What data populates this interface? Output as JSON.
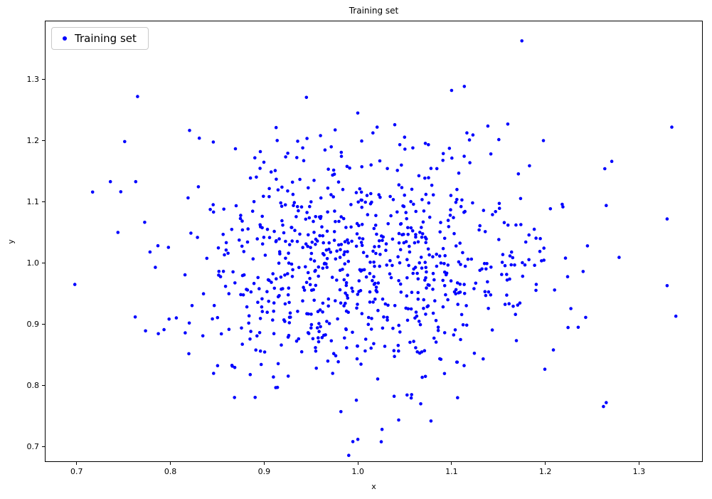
{
  "chart_data": {
    "type": "scatter",
    "title": "Training set",
    "xlabel": "x",
    "ylabel": "y",
    "xlim": [
      0.666,
      1.368
    ],
    "ylim": [
      0.675,
      1.396
    ],
    "xticks": [
      0.7,
      0.8,
      0.9,
      1.0,
      1.1,
      1.2,
      1.3
    ],
    "yticks": [
      0.7,
      0.8,
      0.9,
      1.0,
      1.1,
      1.2,
      1.3
    ],
    "grid": false,
    "legend_position": "upper left",
    "series": [
      {
        "name": "Training set",
        "color": "#0000ff",
        "marker": "dot",
        "marker_radius_px": 2.3,
        "n_points": 800,
        "distribution": {
          "kind": "gaussian",
          "mean": [
            1.0,
            1.0
          ],
          "std": [
            0.1,
            0.1
          ],
          "seed": 42
        },
        "notable_points": [
          [
            1.175,
            1.363
          ],
          [
            1.335,
            1.222
          ],
          [
            1.33,
            1.072
          ],
          [
            1.33,
            0.963
          ],
          [
            1.265,
            0.772
          ],
          [
            1.265,
            1.094
          ],
          [
            1.025,
            0.708
          ],
          [
            1.0,
            0.712
          ],
          [
            0.698,
            0.965
          ],
          [
            0.765,
            1.272
          ],
          [
            0.717,
            1.116
          ],
          [
            0.736,
            1.133
          ],
          [
            0.744,
            1.05
          ],
          [
            1.1,
            1.282
          ],
          [
            1.198,
            1.2
          ],
          [
            1.245,
            1.028
          ],
          [
            1.218,
            1.096
          ],
          [
            0.763,
            1.133
          ],
          [
            1.16,
            1.227
          ],
          [
            1.078,
            0.742
          ]
        ]
      }
    ]
  }
}
